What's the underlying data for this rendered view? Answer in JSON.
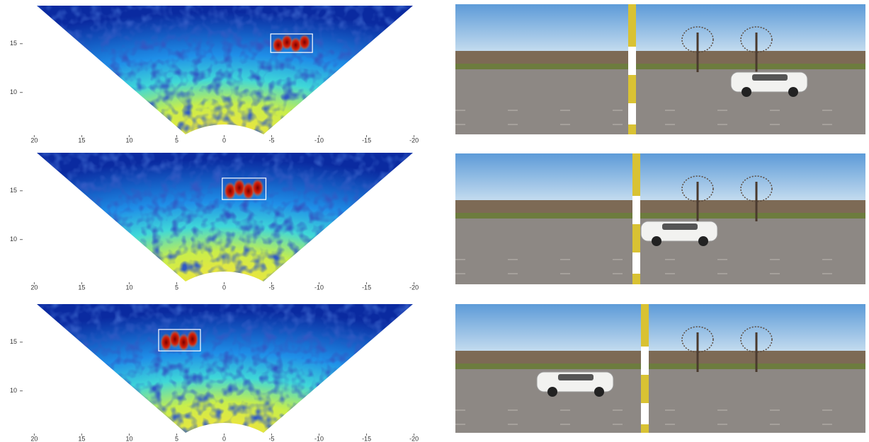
{
  "chart_data": [
    {
      "type": "heatmap",
      "xlim": [
        21,
        -21
      ],
      "ylim": [
        5.7,
        18.9
      ],
      "xticks": [
        20,
        15,
        10,
        5,
        0,
        -5,
        -10,
        -15,
        -20
      ],
      "yticks": [
        10,
        15
      ],
      "boxes": [
        {
          "x": [
            -4.9,
            -9.3
          ],
          "y": [
            14.1,
            16.0
          ]
        }
      ]
    },
    {
      "type": "heatmap",
      "xlim": [
        21,
        -21
      ],
      "ylim": [
        5.7,
        18.9
      ],
      "xticks": [
        20,
        15,
        10,
        5,
        0,
        -5,
        -10,
        -15,
        -20
      ],
      "yticks": [
        10,
        15
      ],
      "boxes": [
        {
          "x": [
            0.2,
            -4.4
          ],
          "y": [
            14.1,
            16.3
          ]
        }
      ]
    },
    {
      "type": "heatmap",
      "xlim": [
        21,
        -21
      ],
      "ylim": [
        5.7,
        18.9
      ],
      "xticks": [
        20,
        15,
        10,
        5,
        0,
        -5,
        -10,
        -15,
        -20
      ],
      "yticks": [
        10,
        15
      ],
      "boxes": [
        {
          "x": [
            6.9,
            2.5
          ],
          "y": [
            14.1,
            16.3
          ]
        }
      ]
    }
  ]
}
